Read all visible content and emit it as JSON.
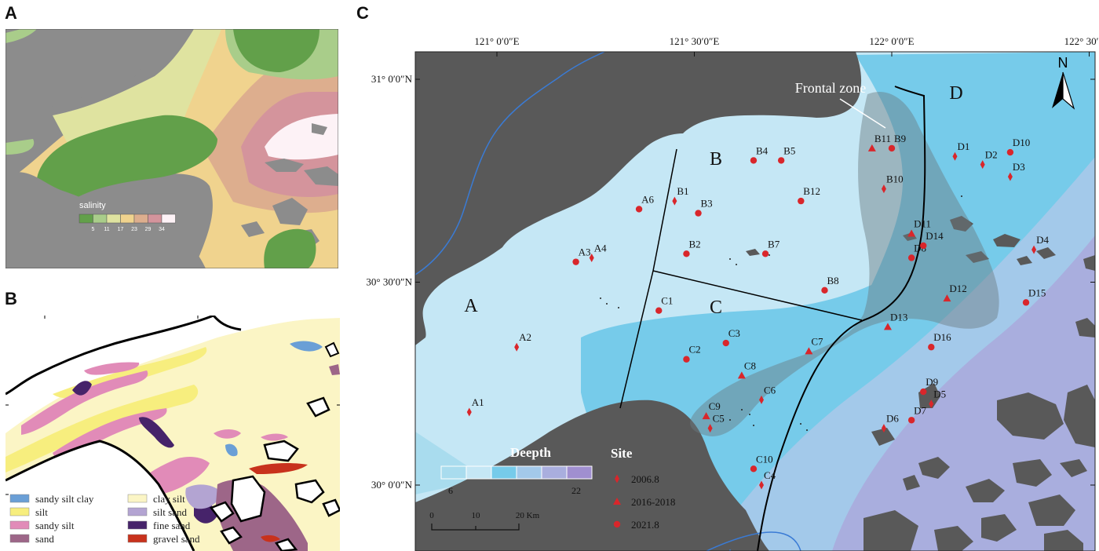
{
  "panels": {
    "a": {
      "label": "A"
    },
    "b": {
      "label": "B"
    },
    "c": {
      "label": "C"
    }
  },
  "panel_a": {
    "legend_title": "salinity",
    "legend_ticks": [
      "5",
      "11",
      "17",
      "23",
      "29",
      "34"
    ],
    "legend_colors": [
      "#62a04a",
      "#a9cd8a",
      "#dfe3a0",
      "#f0d38e",
      "#ddae8e",
      "#d4949c",
      "#fdf2f6"
    ]
  },
  "panel_b": {
    "legend": [
      {
        "label": "sandy silt clay",
        "color": "#6a9fd6"
      },
      {
        "label": "clay silt",
        "color": "#fbf5c5"
      },
      {
        "label": "silt",
        "color": "#f7ee7e"
      },
      {
        "label": "silt sand",
        "color": "#b3a4d2"
      },
      {
        "label": "sandy silt",
        "color": "#e18bb8"
      },
      {
        "label": "fine sand",
        "color": "#46236a"
      },
      {
        "label": "sand",
        "color": "#9d6688"
      },
      {
        "label": "gravel sand",
        "color": "#c8321c"
      }
    ]
  },
  "panel_c": {
    "lon_labels": [
      "121° 0′0″E",
      "121° 30′0″E",
      "122° 0′0″E",
      "122° 30′0″E"
    ],
    "lat_labels": [
      "31° 0′0″N",
      "30° 30′0″N",
      "30° 0′0″N"
    ],
    "north": "N",
    "frontal_zone": "Frontal zone",
    "regions": [
      "A",
      "B",
      "C",
      "D"
    ],
    "depth_title": "Deepth",
    "depth_min": "6",
    "depth_max": "22",
    "depth_colors": [
      "#a9dcee",
      "#c5e7f5",
      "#76cbea",
      "#a3c9ea",
      "#a9aede",
      "#a08fd0"
    ],
    "scale_ticks": [
      "0",
      "10",
      "20 Km"
    ],
    "site_title": "Site",
    "site_legend": [
      {
        "shape": "diamond",
        "label": "2006.8"
      },
      {
        "shape": "triangle",
        "label": "2016-2018"
      },
      {
        "shape": "circle",
        "label": "2021.8"
      }
    ],
    "marker_color": "#d9262b",
    "sites": [
      {
        "id": "A1",
        "lon": 120.93,
        "lat": 30.18,
        "shape": "diamond"
      },
      {
        "id": "A2",
        "lon": 121.05,
        "lat": 30.34,
        "shape": "diamond"
      },
      {
        "id": "A3",
        "lon": 121.2,
        "lat": 30.55,
        "shape": "circle"
      },
      {
        "id": "A4",
        "lon": 121.24,
        "lat": 30.56,
        "shape": "diamond"
      },
      {
        "id": "A6",
        "lon": 121.36,
        "lat": 30.68,
        "shape": "circle"
      },
      {
        "id": "B1",
        "lon": 121.45,
        "lat": 30.7,
        "shape": "diamond"
      },
      {
        "id": "B2",
        "lon": 121.48,
        "lat": 30.57,
        "shape": "circle"
      },
      {
        "id": "B3",
        "lon": 121.51,
        "lat": 30.67,
        "shape": "circle"
      },
      {
        "id": "B4",
        "lon": 121.65,
        "lat": 30.8,
        "shape": "circle"
      },
      {
        "id": "B5",
        "lon": 121.72,
        "lat": 30.8,
        "shape": "circle"
      },
      {
        "id": "B7",
        "lon": 121.68,
        "lat": 30.57,
        "shape": "circle"
      },
      {
        "id": "B8",
        "lon": 121.83,
        "lat": 30.48,
        "shape": "circle"
      },
      {
        "id": "B9",
        "lon": 122.0,
        "lat": 30.83,
        "shape": "circle"
      },
      {
        "id": "B10",
        "lon": 121.98,
        "lat": 30.73,
        "shape": "diamond"
      },
      {
        "id": "B11",
        "lon": 121.95,
        "lat": 30.83,
        "shape": "triangle"
      },
      {
        "id": "B12",
        "lon": 121.77,
        "lat": 30.7,
        "shape": "circle"
      },
      {
        "id": "C1",
        "lon": 121.41,
        "lat": 30.43,
        "shape": "circle"
      },
      {
        "id": "C2",
        "lon": 121.48,
        "lat": 30.31,
        "shape": "circle"
      },
      {
        "id": "C3",
        "lon": 121.58,
        "lat": 30.35,
        "shape": "circle"
      },
      {
        "id": "C4",
        "lon": 121.67,
        "lat": 30.0,
        "shape": "diamond"
      },
      {
        "id": "C5",
        "lon": 121.54,
        "lat": 30.14,
        "shape": "diamond"
      },
      {
        "id": "C6",
        "lon": 121.67,
        "lat": 30.21,
        "shape": "diamond"
      },
      {
        "id": "C7",
        "lon": 121.79,
        "lat": 30.33,
        "shape": "triangle"
      },
      {
        "id": "C8",
        "lon": 121.62,
        "lat": 30.27,
        "shape": "triangle"
      },
      {
        "id": "C9",
        "lon": 121.53,
        "lat": 30.17,
        "shape": "triangle"
      },
      {
        "id": "C10",
        "lon": 121.65,
        "lat": 30.04,
        "shape": "circle"
      },
      {
        "id": "D1",
        "lon": 122.16,
        "lat": 30.81,
        "shape": "diamond"
      },
      {
        "id": "D2",
        "lon": 122.23,
        "lat": 30.79,
        "shape": "diamond"
      },
      {
        "id": "D3",
        "lon": 122.3,
        "lat": 30.76,
        "shape": "diamond"
      },
      {
        "id": "D4",
        "lon": 122.36,
        "lat": 30.58,
        "shape": "diamond"
      },
      {
        "id": "D5",
        "lon": 122.1,
        "lat": 30.2,
        "shape": "diamond"
      },
      {
        "id": "D6",
        "lon": 121.98,
        "lat": 30.14,
        "shape": "diamond"
      },
      {
        "id": "D7",
        "lon": 122.05,
        "lat": 30.16,
        "shape": "circle"
      },
      {
        "id": "D8",
        "lon": 122.05,
        "lat": 30.56,
        "shape": "circle"
      },
      {
        "id": "D9",
        "lon": 122.08,
        "lat": 30.23,
        "shape": "circle"
      },
      {
        "id": "D10",
        "lon": 122.3,
        "lat": 30.82,
        "shape": "circle"
      },
      {
        "id": "D11",
        "lon": 122.05,
        "lat": 30.62,
        "shape": "triangle"
      },
      {
        "id": "D12",
        "lon": 122.14,
        "lat": 30.46,
        "shape": "triangle"
      },
      {
        "id": "D13",
        "lon": 121.99,
        "lat": 30.39,
        "shape": "triangle"
      },
      {
        "id": "D14",
        "lon": 122.08,
        "lat": 30.59,
        "shape": "circle"
      },
      {
        "id": "D15",
        "lon": 122.34,
        "lat": 30.45,
        "shape": "circle"
      },
      {
        "id": "D16",
        "lon": 122.1,
        "lat": 30.34,
        "shape": "circle"
      }
    ]
  }
}
